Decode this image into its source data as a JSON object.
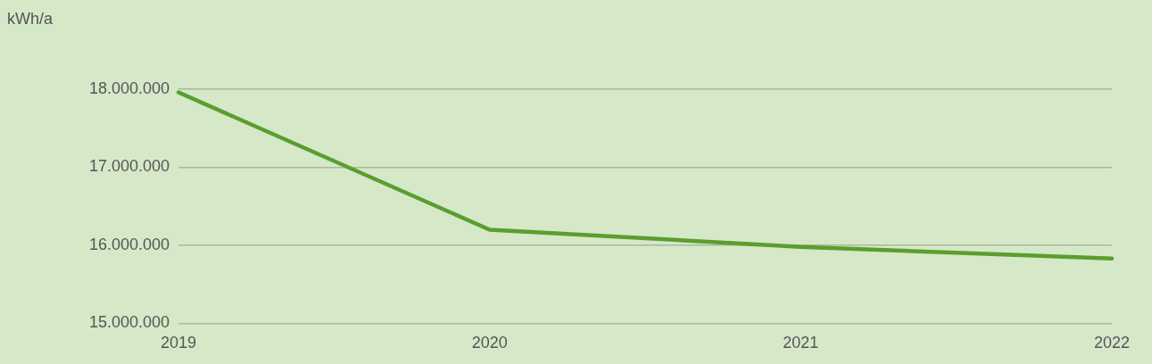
{
  "chart_data": {
    "type": "line",
    "ylabel": "kWh/a",
    "categories": [
      "2019",
      "2020",
      "2021",
      "2022"
    ],
    "series": [
      {
        "color": "#5a9e2e",
        "values": [
          17960000,
          16200000,
          15980000,
          15830000
        ]
      }
    ],
    "ylim": [
      15000000,
      18000000
    ],
    "yticks": [
      {
        "value": 15000000,
        "label": "15.000.000"
      },
      {
        "value": 16000000,
        "label": "16.000.000"
      },
      {
        "value": 17000000,
        "label": "17.000.000"
      },
      {
        "value": 18000000,
        "label": "18.000.000"
      }
    ],
    "grid": "y",
    "legend": false,
    "marker": "none",
    "line_style": "solid"
  }
}
